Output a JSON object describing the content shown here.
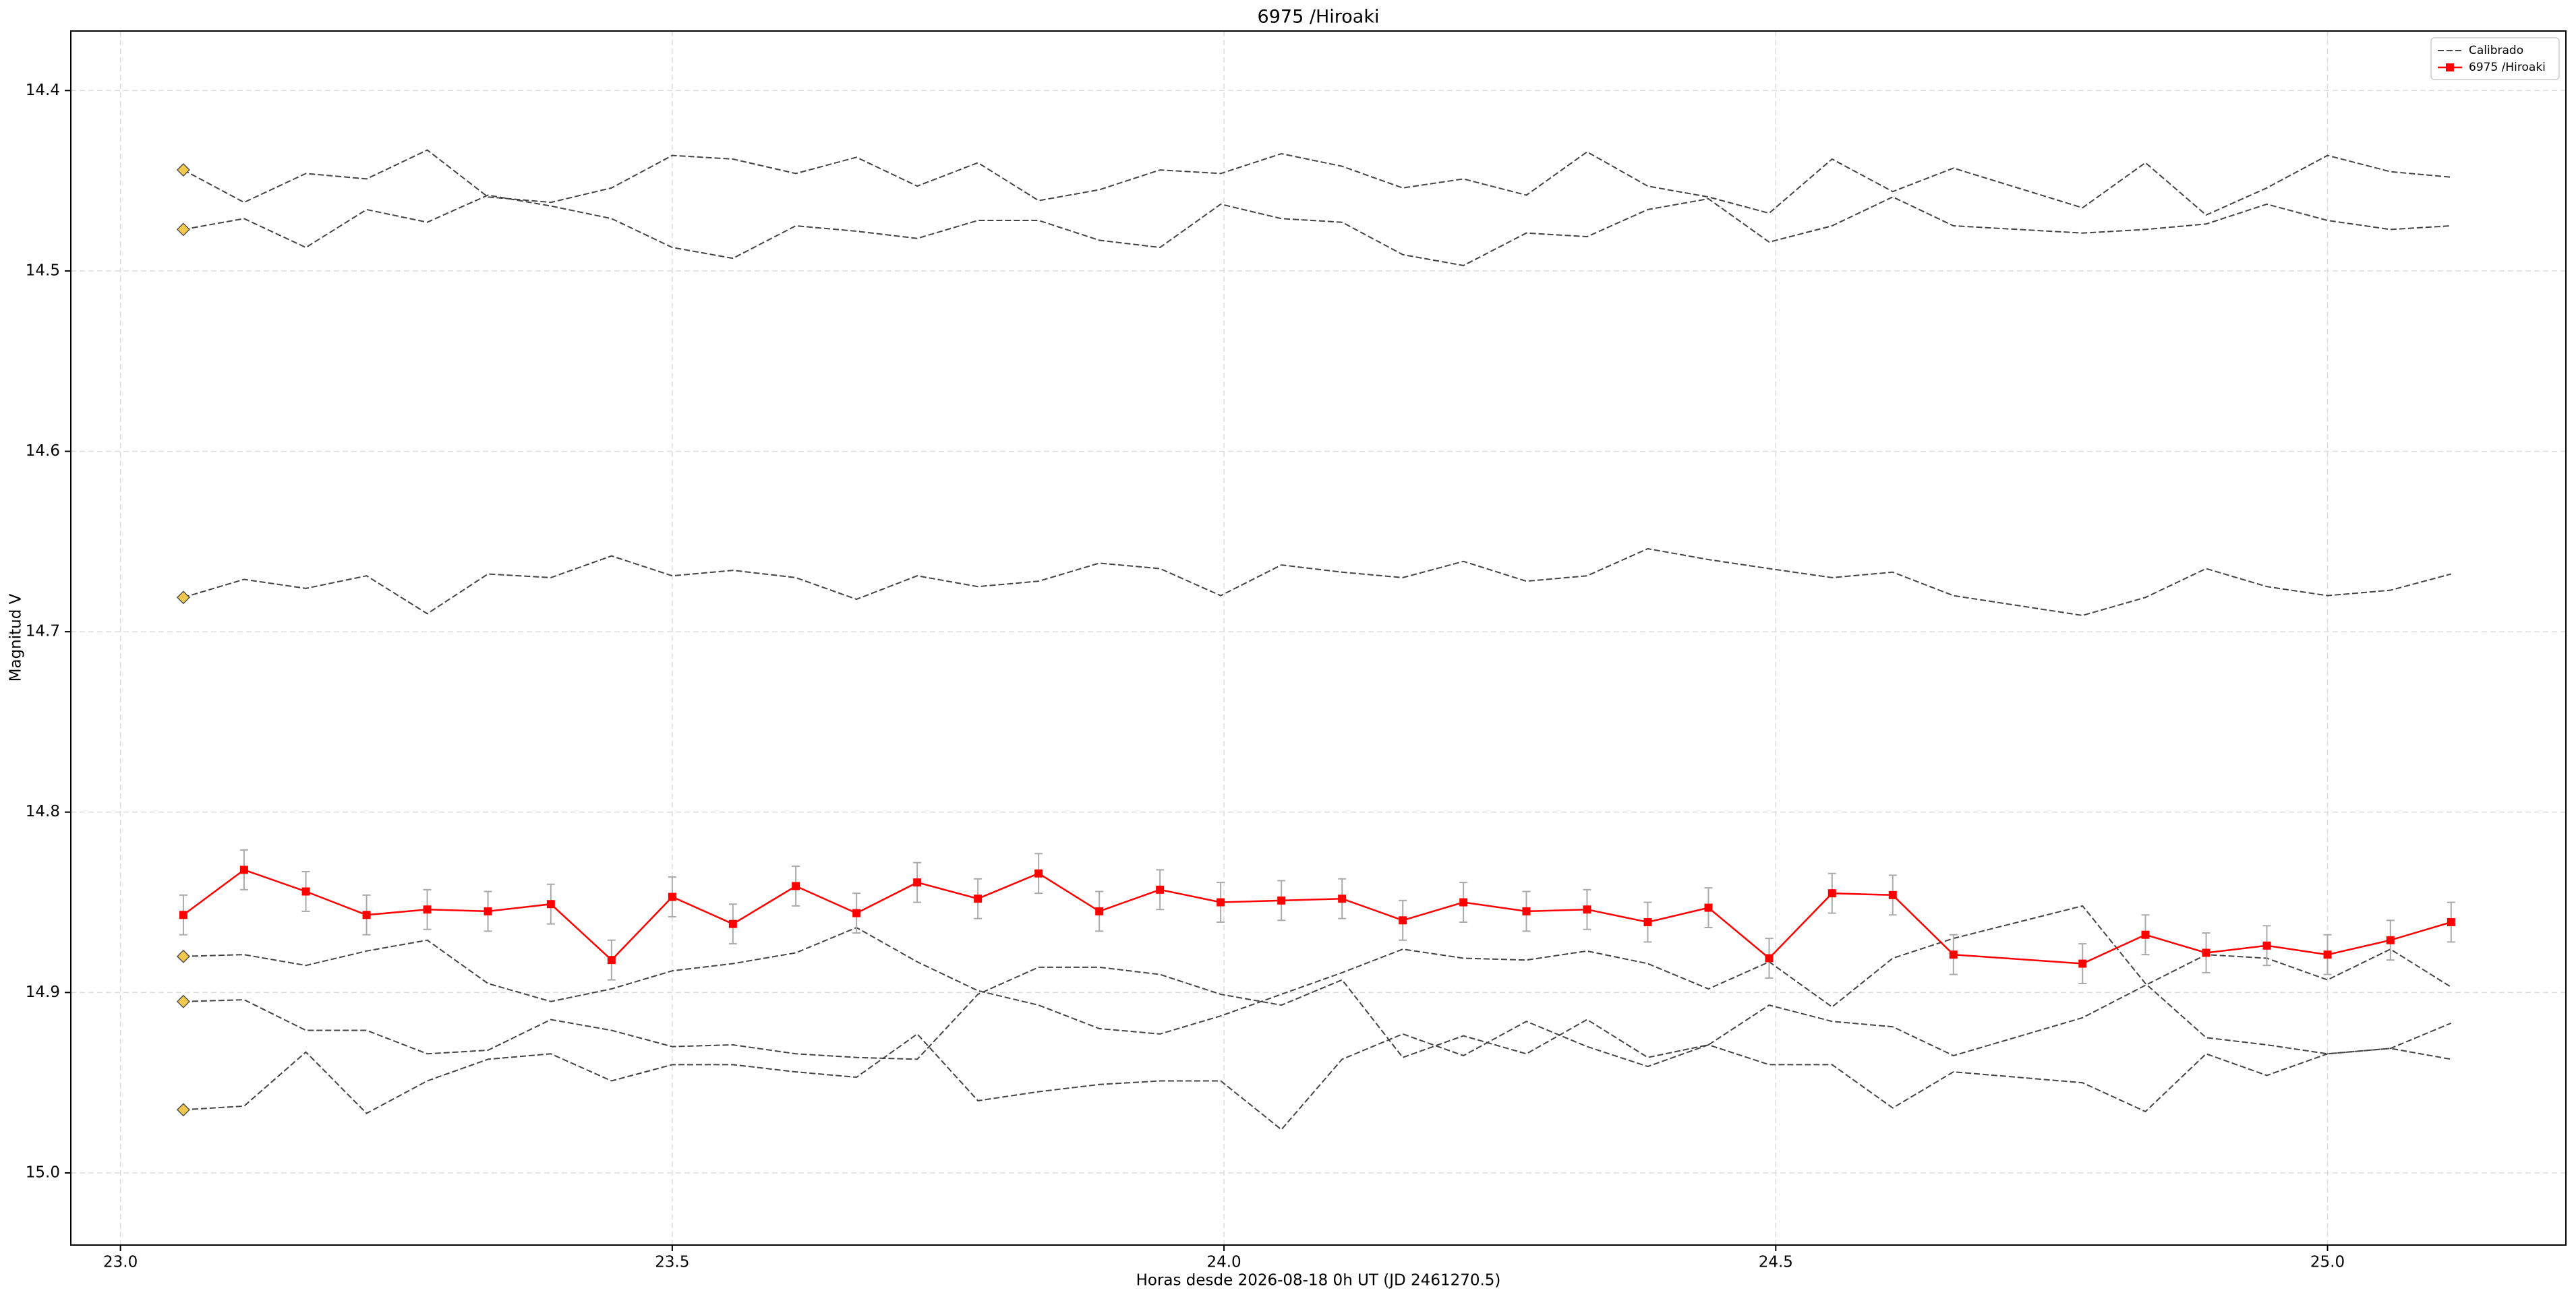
{
  "chart_data": {
    "type": "line",
    "title": "6975 /Hiroaki",
    "x_label": "Horas desde 2026-08-18 0h UT (JD 2461270.5)",
    "y_label": "Magnitud V",
    "xlim": [
      22.955,
      25.216
    ],
    "ylim": [
      14.367,
      15.04
    ],
    "invert_y": true,
    "grid": true,
    "legend_position": "upper right",
    "xticks": [
      {
        "value": 23,
        "label": "23.0"
      },
      23.5,
      {
        "value": 24,
        "label": "24.0"
      },
      24.5,
      {
        "value": 25,
        "label": "25.0"
      }
    ],
    "yticks": [
      14.4,
      14.5,
      14.6,
      14.7,
      14.8,
      14.9,
      {
        "value": 15,
        "label": "15.0"
      }
    ],
    "x": [
      23.057,
      23.112,
      23.168,
      23.223,
      23.278,
      23.333,
      23.39,
      23.445,
      23.5,
      23.555,
      23.612,
      23.667,
      23.722,
      23.777,
      23.832,
      23.887,
      23.942,
      23.997,
      24.052,
      24.107,
      24.162,
      24.217,
      24.274,
      24.329,
      24.384,
      24.439,
      24.494,
      24.551,
      24.606,
      24.661,
      24.778,
      24.835,
      24.89,
      24.945,
      25.0,
      25.057,
      25.112
    ],
    "calibrated": {
      "name": "Calibrado",
      "color": "#444444",
      "start_marker_color": "#f2c94c",
      "lines": [
        [
          14.444,
          14.462,
          14.446,
          14.449,
          14.433,
          14.459,
          14.462,
          14.454,
          14.436,
          14.438,
          14.446,
          14.437,
          14.453,
          14.44,
          14.461,
          14.455,
          14.444,
          14.446,
          14.435,
          14.442,
          14.454,
          14.449,
          14.458,
          14.434,
          14.453,
          14.459,
          14.468,
          14.438,
          14.456,
          14.443,
          14.465,
          14.44,
          14.469,
          14.454,
          14.436,
          14.445,
          14.448
        ],
        [
          14.477,
          14.471,
          14.487,
          14.466,
          14.473,
          14.458,
          14.464,
          14.471,
          14.487,
          14.493,
          14.475,
          14.478,
          14.482,
          14.472,
          14.472,
          14.483,
          14.487,
          14.463,
          14.471,
          14.473,
          14.491,
          14.497,
          14.479,
          14.481,
          14.466,
          14.46,
          14.484,
          14.475,
          14.459,
          14.475,
          14.479,
          14.477,
          14.474,
          14.463,
          14.472,
          14.477,
          14.475
        ],
        [
          14.681,
          14.671,
          14.676,
          14.669,
          14.69,
          14.668,
          14.67,
          14.658,
          14.669,
          14.666,
          14.67,
          14.682,
          14.669,
          14.675,
          14.672,
          14.662,
          14.665,
          14.68,
          14.663,
          14.667,
          14.67,
          14.661,
          14.672,
          14.669,
          14.654,
          14.66,
          14.665,
          14.67,
          14.667,
          14.68,
          14.691,
          14.681,
          14.665,
          14.675,
          14.68,
          14.677,
          14.668
        ],
        [
          14.88,
          14.879,
          14.885,
          14.877,
          14.871,
          14.895,
          14.905,
          14.898,
          14.888,
          14.884,
          14.878,
          14.864,
          14.883,
          14.899,
          14.907,
          14.92,
          14.923,
          14.913,
          14.901,
          14.889,
          14.876,
          14.881,
          14.882,
          14.877,
          14.884,
          14.898,
          14.883,
          14.908,
          14.881,
          14.87,
          14.852,
          14.895,
          14.925,
          14.929,
          14.934,
          14.931,
          14.917
        ],
        [
          14.905,
          14.904,
          14.921,
          14.921,
          14.934,
          14.932,
          14.915,
          14.921,
          14.93,
          14.929,
          14.934,
          14.936,
          14.937,
          14.901,
          14.886,
          14.886,
          14.89,
          14.901,
          14.907,
          14.893,
          14.936,
          14.924,
          14.934,
          14.915,
          14.936,
          14.929,
          14.907,
          14.916,
          14.919,
          14.935,
          14.914,
          14.896,
          14.879,
          14.881,
          14.893,
          14.876,
          14.897
        ],
        [
          14.965,
          14.963,
          14.933,
          14.967,
          14.949,
          14.937,
          14.934,
          14.949,
          14.94,
          14.94,
          14.944,
          14.947,
          14.923,
          14.96,
          14.955,
          14.951,
          14.949,
          14.949,
          14.976,
          14.937,
          14.923,
          14.935,
          14.916,
          14.93,
          14.941,
          14.929,
          14.94,
          14.94,
          14.964,
          14.944,
          14.95,
          14.966,
          14.934,
          14.946,
          14.934,
          14.931,
          14.937
        ]
      ]
    },
    "target": {
      "name": "6975 /Hiroaki",
      "color": "#ff0000",
      "error_color": "#aaaaaa",
      "values": [
        14.857,
        14.832,
        14.844,
        14.857,
        14.854,
        14.855,
        14.851,
        14.882,
        14.847,
        14.862,
        14.841,
        14.856,
        14.839,
        14.848,
        14.834,
        14.855,
        14.843,
        14.85,
        14.849,
        14.848,
        14.86,
        14.85,
        14.855,
        14.854,
        14.861,
        14.853,
        14.881,
        14.845,
        14.846,
        14.879,
        14.884,
        14.868,
        14.878,
        14.874,
        14.879,
        14.871,
        14.861
      ],
      "errors": [
        0.011,
        0.011,
        0.011,
        0.011,
        0.011,
        0.011,
        0.011,
        0.011,
        0.011,
        0.011,
        0.011,
        0.011,
        0.011,
        0.011,
        0.011,
        0.011,
        0.011,
        0.011,
        0.011,
        0.011,
        0.011,
        0.011,
        0.011,
        0.011,
        0.011,
        0.011,
        0.011,
        0.011,
        0.011,
        0.011,
        0.011,
        0.011,
        0.011,
        0.011,
        0.011,
        0.011,
        0.011
      ]
    }
  }
}
